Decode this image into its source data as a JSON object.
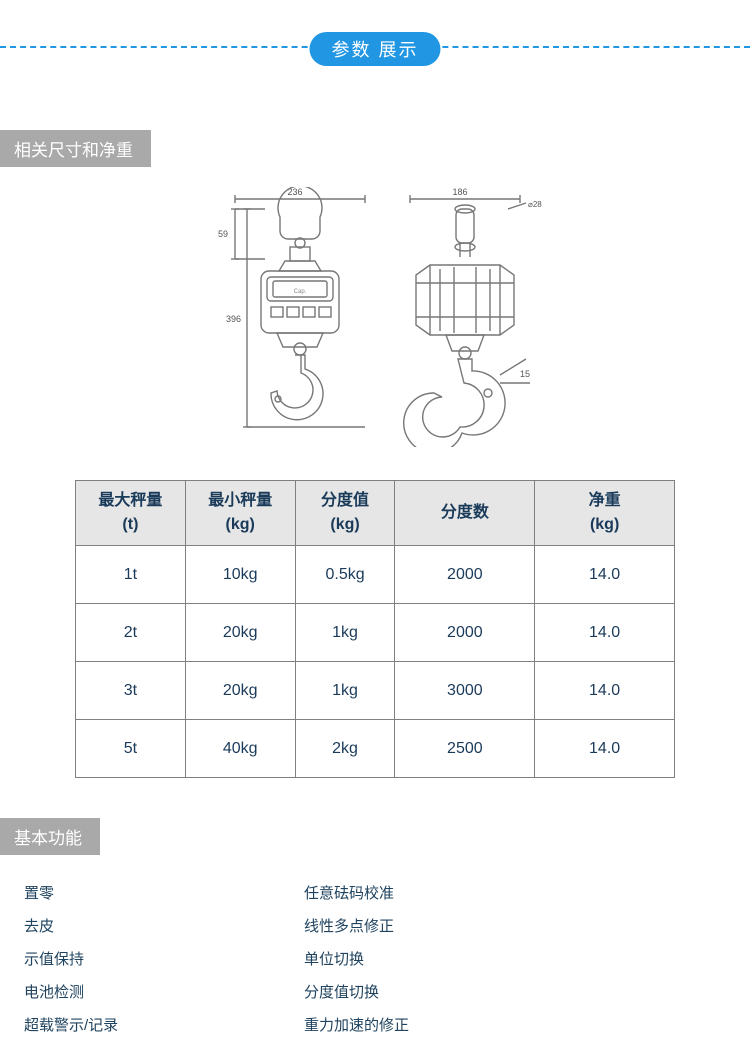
{
  "colors": {
    "accent": "#2196e3",
    "dash": "#2196e3",
    "section_header_bg": "#a9a9a9",
    "table_border": "#808080",
    "table_header_bg": "#e6e6e6",
    "text_dark": "#1a3a5a",
    "feature_text": "#20435f"
  },
  "banner": {
    "label": "参数  展示"
  },
  "section_dimensions": {
    "title": "相关尺寸和净重",
    "diagram": {
      "dim_top_width": "236",
      "dim_side_width": "186",
      "dim_circle": "28",
      "dim_hook_top": "59",
      "dim_height": "396",
      "dim_hook_angle": "15"
    }
  },
  "spec_table": {
    "columns": [
      {
        "line1": "最大秤量",
        "line2": "(t)"
      },
      {
        "line1": "最小秤量",
        "line2": "(kg)"
      },
      {
        "line1": "分度值",
        "line2": "(kg)"
      },
      {
        "line1": "分度数",
        "line2": ""
      },
      {
        "line1": "净重",
        "line2": "(kg)"
      }
    ],
    "rows": [
      [
        "1t",
        "10kg",
        "0.5kg",
        "2000",
        "14.0"
      ],
      [
        "2t",
        "20kg",
        "1kg",
        "2000",
        "14.0"
      ],
      [
        "3t",
        "20kg",
        "1kg",
        "3000",
        "14.0"
      ],
      [
        "5t",
        "40kg",
        "2kg",
        "2500",
        "14.0"
      ]
    ],
    "col_widths": [
      "110",
      "110",
      "100",
      "140",
      "140"
    ]
  },
  "section_features": {
    "title": "基本功能",
    "left": [
      "置零",
      "去皮",
      "示值保持",
      "电池检测",
      "超载警示/记录"
    ],
    "right": [
      "任意砝码校准",
      "线性多点修正",
      "单位切换",
      "分度值切换",
      "重力加速的修正"
    ]
  }
}
